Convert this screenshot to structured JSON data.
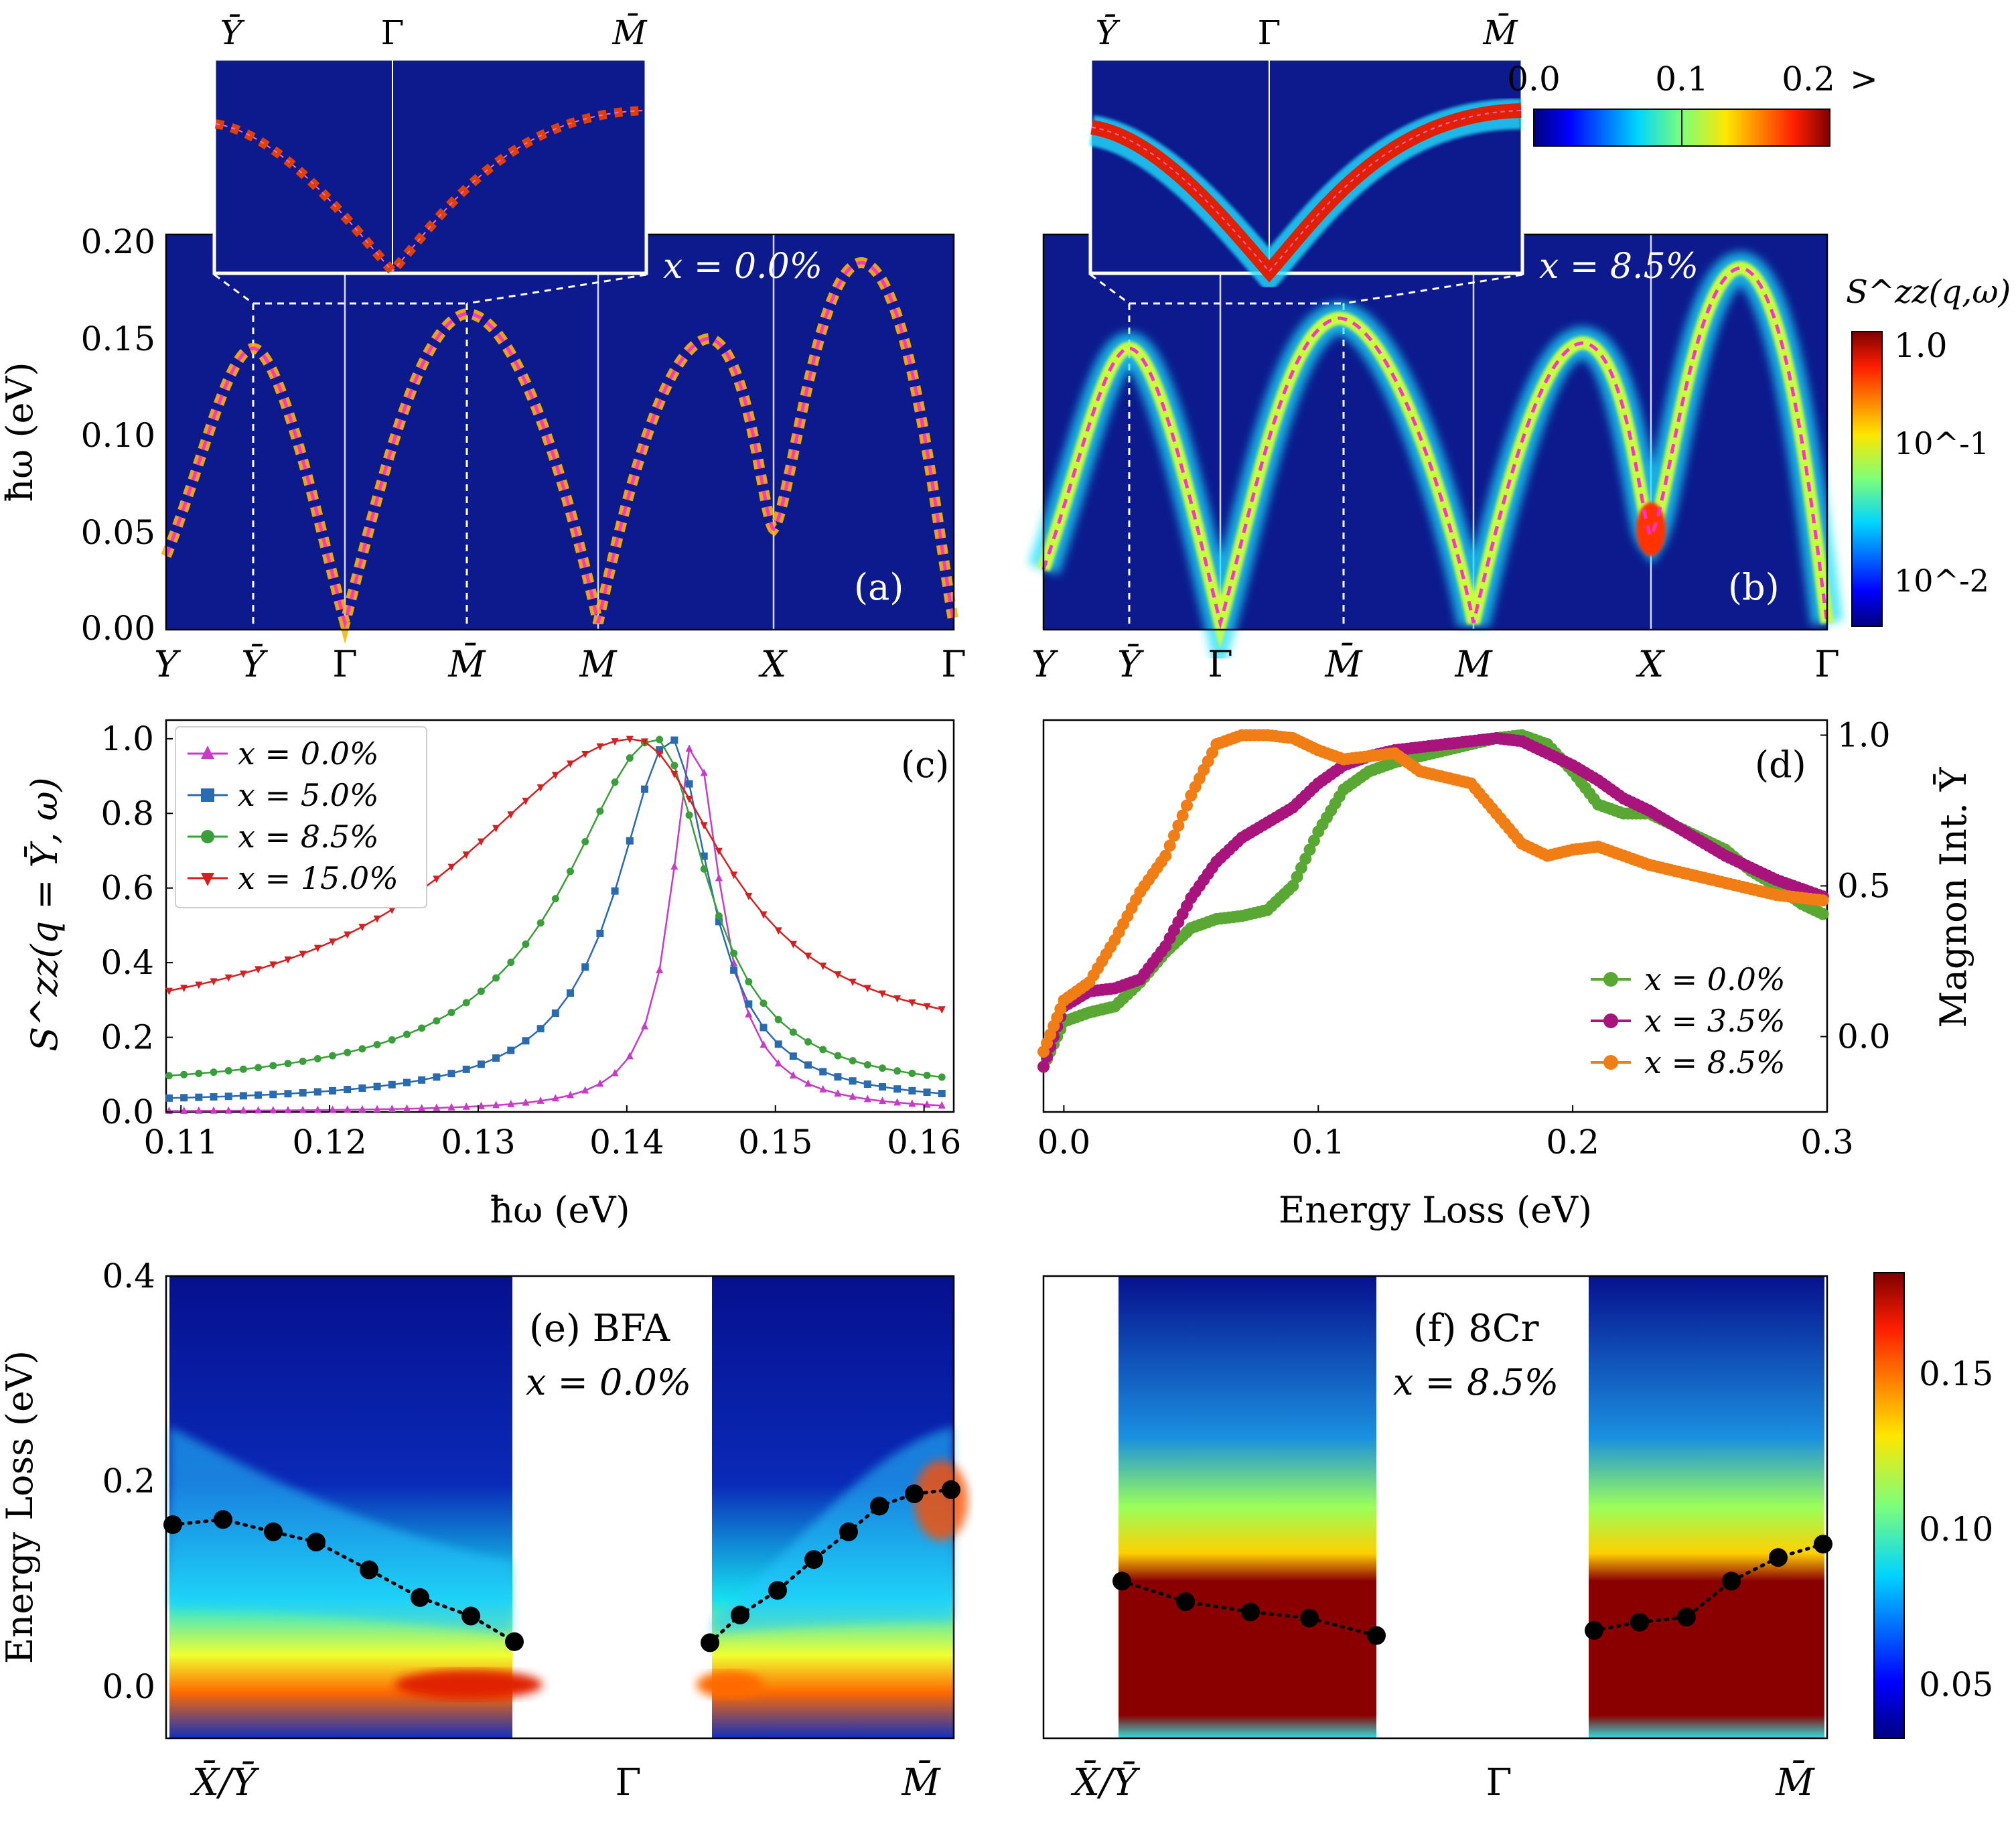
{
  "chart_data": [
    {
      "id": "a",
      "type": "heatmap",
      "panel_label": "(a)",
      "annotation": "x = 0.0%",
      "ylabel": "ħω (eV)",
      "ylim": [
        0,
        0.2
      ],
      "y_ticks": [
        "0.00",
        "0.05",
        "0.10",
        "0.15",
        "0.20"
      ],
      "x_ticks": [
        "Y",
        "Ȳ",
        "Γ",
        "M̄",
        "M",
        "X",
        "Γ"
      ],
      "inset_ticks": [
        "Ȳ",
        "Γ",
        "M̄"
      ],
      "dispersion_eV": [
        0.04,
        0.145,
        0.0,
        0.16,
        0.0,
        0.05,
        0.187,
        0.0
      ],
      "dispersion_x": [
        0,
        0.6,
        1.2,
        1.9,
        2.7,
        3.7,
        4.3,
        4.9
      ]
    },
    {
      "id": "b",
      "type": "heatmap",
      "panel_label": "(b)",
      "annotation": "x = 8.5%",
      "x_ticks": [
        "Y",
        "Ȳ",
        "Γ",
        "M̄",
        "M",
        "X",
        "Γ"
      ],
      "inset_ticks": [
        "Ȳ",
        "Γ",
        "M̄"
      ],
      "colorbar_title": "S^zz(q,ω)",
      "colorbar_ticks": [
        "1.0",
        "10^-1",
        "10^-2"
      ],
      "inset_colorbar_ticks": [
        "0.0",
        "0.1",
        "0.2",
        ">"
      ],
      "dispersion_eV": [
        0.04,
        0.145,
        0.0,
        0.16,
        0.0,
        0.05,
        0.187,
        0.0
      ],
      "dispersion_x": [
        0,
        0.6,
        1.2,
        1.9,
        2.7,
        3.7,
        4.3,
        4.9
      ]
    },
    {
      "id": "c",
      "type": "line",
      "panel_label": "(c)",
      "xlabel": "ħω (eV)",
      "ylabel": "S^zz(q = Ȳ, ω)",
      "xlim": [
        0.109,
        0.162
      ],
      "ylim": [
        0,
        1.05
      ],
      "x_ticks": [
        "0.11",
        "0.12",
        "0.13",
        "0.14",
        "0.15",
        "0.16"
      ],
      "y_ticks": [
        "0.0",
        "0.2",
        "0.4",
        "0.6",
        "0.8",
        "1.0"
      ],
      "legend": [
        "x =   0.0%",
        "x =   5.0%",
        "x =   8.5%",
        "x = 15.0%"
      ],
      "series": [
        {
          "name": "x = 0.0%",
          "color": "#c83ac8",
          "marker": "triangle-up",
          "peak": 0.1445,
          "width_left": 0.0018,
          "width_right": 0.0022,
          "base": 0.0
        },
        {
          "name": "x = 5.0%",
          "color": "#2a6ab0",
          "marker": "square",
          "peak": 0.143,
          "width_left": 0.0045,
          "width_right": 0.0032,
          "base": 0.02
        },
        {
          "name": "x = 8.5%",
          "color": "#3a9e3a",
          "marker": "circle",
          "peak": 0.142,
          "width_left": 0.0075,
          "width_right": 0.0042,
          "base": 0.05
        },
        {
          "name": "x = 15.0%",
          "color": "#d42020",
          "marker": "triangle-down",
          "peak": 0.1405,
          "width_left": 0.0145,
          "width_right": 0.0075,
          "base": 0.18
        }
      ]
    },
    {
      "id": "d",
      "type": "scatter",
      "panel_label": "(d)",
      "xlabel": "Energy Loss (eV)",
      "ylabel": "Magnon Int. Ȳ",
      "xlim": [
        -0.008,
        0.3
      ],
      "ylim": [
        -0.25,
        1.05
      ],
      "x_ticks": [
        "0.0",
        "0.1",
        "0.2",
        "0.3"
      ],
      "y_ticks": [
        "0.0",
        "0.5",
        "1.0"
      ],
      "legend": [
        "x = 0.0%",
        "x = 3.5%",
        "x = 8.5%"
      ],
      "series": [
        {
          "name": "x = 0.0%",
          "color": "#5aa834",
          "x": [
            -0.008,
            0.0,
            0.01,
            0.02,
            0.03,
            0.04,
            0.05,
            0.06,
            0.07,
            0.08,
            0.09,
            0.1,
            0.11,
            0.12,
            0.13,
            0.14,
            0.15,
            0.16,
            0.17,
            0.18,
            0.19,
            0.2,
            0.21,
            0.22,
            0.23,
            0.24,
            0.25,
            0.26,
            0.27,
            0.28,
            0.29,
            0.3
          ],
          "y": [
            -0.1,
            0.05,
            0.08,
            0.1,
            0.18,
            0.28,
            0.36,
            0.39,
            0.4,
            0.42,
            0.5,
            0.68,
            0.82,
            0.88,
            0.91,
            0.93,
            0.95,
            0.97,
            0.99,
            1.0,
            0.97,
            0.88,
            0.77,
            0.74,
            0.74,
            0.7,
            0.66,
            0.62,
            0.55,
            0.5,
            0.44,
            0.4
          ]
        },
        {
          "name": "x = 3.5%",
          "color": "#a8147c",
          "x": [
            -0.008,
            0.0,
            0.01,
            0.02,
            0.03,
            0.04,
            0.05,
            0.06,
            0.07,
            0.08,
            0.09,
            0.1,
            0.11,
            0.12,
            0.13,
            0.14,
            0.15,
            0.16,
            0.17,
            0.18,
            0.19,
            0.2,
            0.21,
            0.22,
            0.23,
            0.24,
            0.25,
            0.26,
            0.27,
            0.28,
            0.29,
            0.3
          ],
          "y": [
            -0.1,
            0.1,
            0.15,
            0.16,
            0.19,
            0.3,
            0.46,
            0.58,
            0.66,
            0.71,
            0.76,
            0.84,
            0.9,
            0.93,
            0.95,
            0.96,
            0.97,
            0.98,
            0.99,
            0.98,
            0.94,
            0.9,
            0.85,
            0.79,
            0.75,
            0.7,
            0.65,
            0.6,
            0.56,
            0.52,
            0.49,
            0.46
          ]
        },
        {
          "name": "x = 8.5%",
          "color": "#f07e14",
          "x": [
            -0.008,
            0.0,
            0.01,
            0.02,
            0.03,
            0.04,
            0.05,
            0.06,
            0.07,
            0.08,
            0.09,
            0.1,
            0.11,
            0.12,
            0.13,
            0.14,
            0.15,
            0.16,
            0.17,
            0.18,
            0.19,
            0.2,
            0.21,
            0.22,
            0.23,
            0.24,
            0.25,
            0.26,
            0.27,
            0.28,
            0.29,
            0.3
          ],
          "y": [
            -0.05,
            0.12,
            0.18,
            0.32,
            0.48,
            0.6,
            0.8,
            0.97,
            1.0,
            1.0,
            0.99,
            0.95,
            0.92,
            0.93,
            0.94,
            0.88,
            0.86,
            0.84,
            0.74,
            0.64,
            0.6,
            0.62,
            0.63,
            0.6,
            0.57,
            0.55,
            0.53,
            0.51,
            0.49,
            0.47,
            0.46,
            0.45
          ]
        }
      ]
    },
    {
      "id": "e",
      "type": "heatmap",
      "panel_label": "(e) BFA",
      "annotation": "x = 0.0%",
      "ylabel": "Energy Loss (eV)",
      "ylim": [
        -0.05,
        0.4
      ],
      "y_ticks": [
        "0.0",
        "0.2",
        "0.4"
      ],
      "x_ticks": [
        "X̄/Ȳ",
        "Γ",
        "M̄"
      ],
      "peaks_left_eV": [
        0.158,
        0.163,
        0.151,
        0.141,
        0.114,
        0.087,
        0.069,
        0.044
      ],
      "peaks_right_eV": [
        0.043,
        0.07,
        0.094,
        0.124,
        0.151,
        0.176,
        0.188,
        0.192
      ]
    },
    {
      "id": "f",
      "type": "heatmap",
      "panel_label": "(f) 8Cr",
      "annotation": "x = 8.5%",
      "x_ticks": [
        "X̄/Ȳ",
        "Γ",
        "M̄"
      ],
      "colorbar_ticks": [
        "0.15",
        "0.10",
        "0.05"
      ],
      "peaks_left_eV": [
        0.103,
        0.083,
        0.073,
        0.067,
        0.05
      ],
      "peaks_right_eV": [
        0.055,
        0.063,
        0.068,
        0.103,
        0.126,
        0.139
      ]
    }
  ]
}
